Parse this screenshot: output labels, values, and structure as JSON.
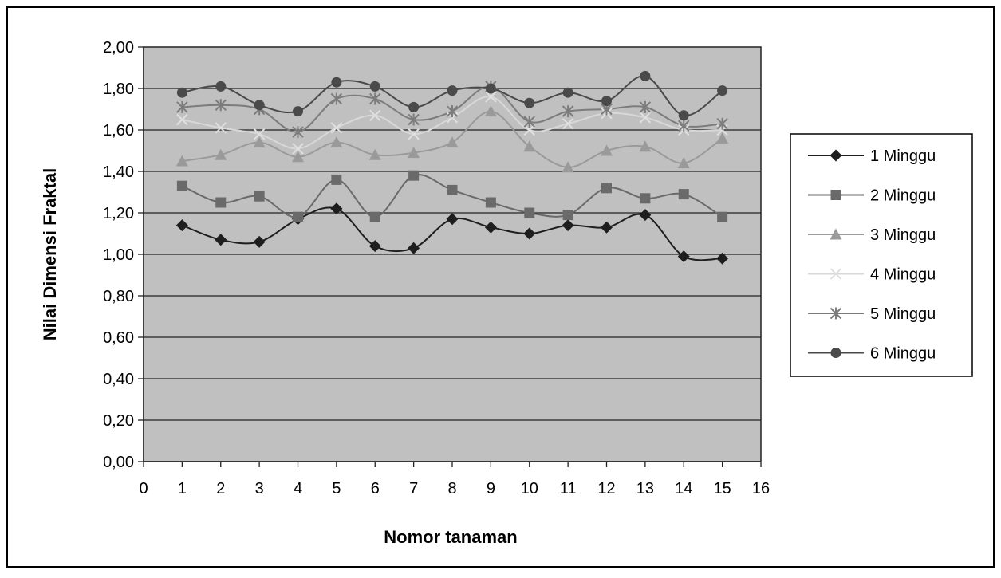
{
  "chart_data": {
    "type": "line",
    "title": "",
    "xlabel": "Nomor tanaman",
    "ylabel": "Nilai Dimensi Fraktal",
    "xlim": [
      0,
      16
    ],
    "ylim": [
      0,
      2
    ],
    "xticks": [
      "0",
      "1",
      "2",
      "3",
      "4",
      "5",
      "6",
      "7",
      "8",
      "9",
      "10",
      "11",
      "12",
      "13",
      "14",
      "15",
      "16"
    ],
    "yticks": [
      "0,00",
      "0,20",
      "0,40",
      "0,60",
      "0,80",
      "1,00",
      "1,20",
      "1,40",
      "1,60",
      "1,80",
      "2,00"
    ],
    "x": [
      1,
      2,
      3,
      4,
      5,
      6,
      7,
      8,
      9,
      10,
      11,
      12,
      13,
      14,
      15
    ],
    "grid": "horizontal",
    "legend_position": "right",
    "plot_background": "#c0c0c0",
    "series": [
      {
        "name": "1 Minggu",
        "marker": "diamond",
        "color": "#1e1e1e",
        "values": [
          1.14,
          1.07,
          1.06,
          1.17,
          1.22,
          1.04,
          1.03,
          1.17,
          1.13,
          1.1,
          1.14,
          1.13,
          1.19,
          0.99,
          0.98
        ]
      },
      {
        "name": "2 Minggu",
        "marker": "square",
        "color": "#6a6a6a",
        "values": [
          1.33,
          1.25,
          1.28,
          1.18,
          1.36,
          1.18,
          1.38,
          1.31,
          1.25,
          1.2,
          1.19,
          1.32,
          1.27,
          1.29,
          1.18
        ]
      },
      {
        "name": "3 Minggu",
        "marker": "triangle",
        "color": "#9a9a9a",
        "values": [
          1.45,
          1.48,
          1.54,
          1.47,
          1.54,
          1.48,
          1.49,
          1.54,
          1.69,
          1.52,
          1.42,
          1.5,
          1.52,
          1.44,
          1.56
        ]
      },
      {
        "name": "4 Minggu",
        "marker": "x",
        "color": "#e0e0e0",
        "values": [
          1.65,
          1.61,
          1.58,
          1.51,
          1.61,
          1.67,
          1.58,
          1.66,
          1.76,
          1.6,
          1.63,
          1.68,
          1.66,
          1.6,
          1.6
        ]
      },
      {
        "name": "5 Minggu",
        "marker": "star",
        "color": "#7c7c7c",
        "values": [
          1.71,
          1.72,
          1.7,
          1.59,
          1.75,
          1.75,
          1.65,
          1.69,
          1.81,
          1.64,
          1.69,
          1.7,
          1.71,
          1.62,
          1.63
        ]
      },
      {
        "name": "6 Minggu",
        "marker": "circle",
        "color": "#4a4a4a",
        "values": [
          1.78,
          1.81,
          1.72,
          1.69,
          1.83,
          1.81,
          1.71,
          1.79,
          1.8,
          1.73,
          1.78,
          1.74,
          1.86,
          1.67,
          1.79
        ]
      }
    ]
  }
}
